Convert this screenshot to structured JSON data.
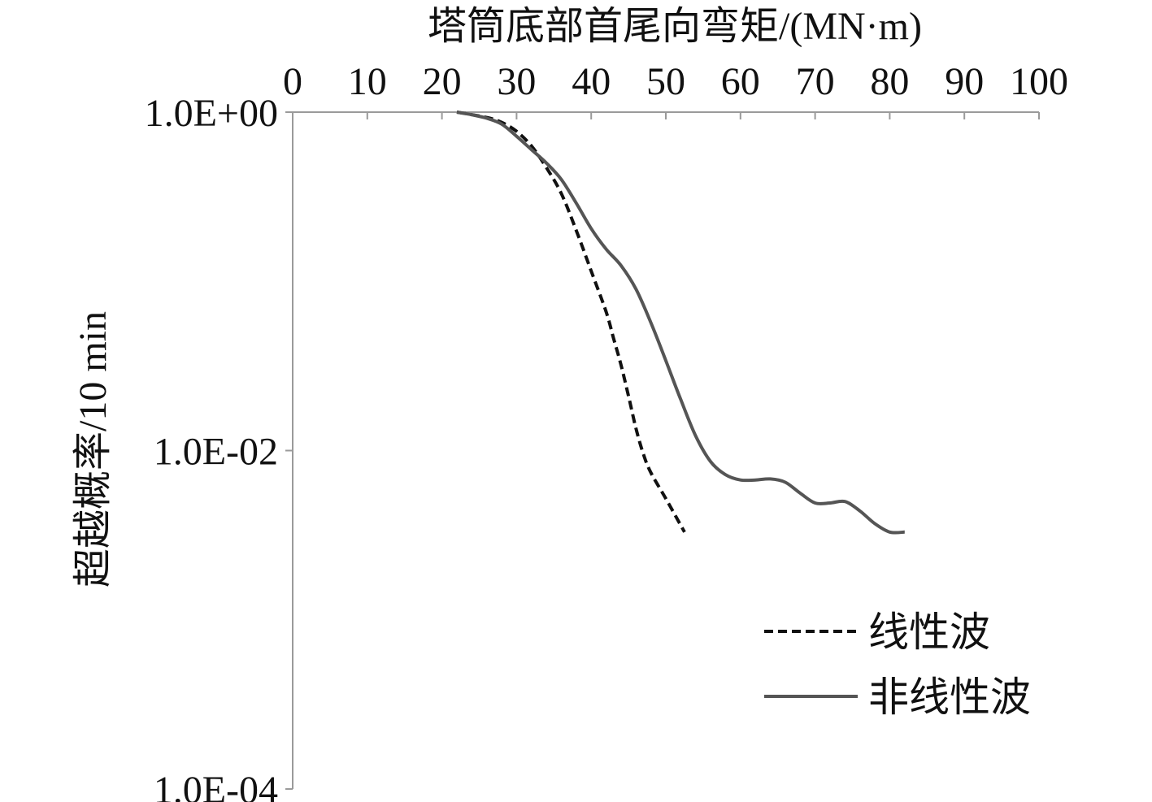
{
  "chart_data": {
    "type": "line",
    "title": "",
    "xlabel": "塔筒底部首尾向弯矩/(MN·m)",
    "ylabel": "超越概率/10 min",
    "x_axis_position": "top",
    "y_scale": "log",
    "xlim": [
      0,
      100
    ],
    "ylim": [
      0.0001,
      1
    ],
    "x_ticks": [
      0,
      10,
      20,
      30,
      40,
      50,
      60,
      70,
      80,
      90,
      100
    ],
    "x_tick_labels": [
      "0",
      "10",
      "20",
      "30",
      "40",
      "50",
      "60",
      "70",
      "80",
      "90",
      "100"
    ],
    "y_ticks": [
      1,
      0.01,
      0.0001
    ],
    "y_tick_labels": [
      "1.0E+00",
      "1.0E-02",
      "1.0E-04"
    ],
    "grid": false,
    "legend_position": "bottom-right",
    "series": [
      {
        "name": "线性波",
        "style": "dashed",
        "color": "#111111",
        "x": [
          22,
          26,
          28,
          30,
          32,
          34,
          36,
          38,
          40,
          42,
          43,
          44,
          45,
          46,
          47,
          48,
          50,
          52.5
        ],
        "y": [
          1.0,
          0.93,
          0.87,
          0.77,
          0.63,
          0.47,
          0.33,
          0.2,
          0.115,
          0.066,
          0.046,
          0.032,
          0.021,
          0.0135,
          0.0095,
          0.0074,
          0.0052,
          0.0033
        ]
      },
      {
        "name": "非线性波",
        "style": "solid",
        "color": "#555555",
        "x": [
          22,
          24,
          26,
          28,
          30,
          32,
          34,
          36,
          38,
          40,
          42,
          44,
          46,
          48,
          50,
          52,
          54,
          56,
          58,
          60,
          62,
          64,
          66,
          68,
          70,
          72,
          74,
          76,
          78,
          80,
          82
        ],
        "y": [
          1.0,
          0.965,
          0.92,
          0.85,
          0.72,
          0.6,
          0.5,
          0.4,
          0.29,
          0.205,
          0.155,
          0.124,
          0.09,
          0.057,
          0.034,
          0.02,
          0.0122,
          0.0086,
          0.0072,
          0.0067,
          0.0067,
          0.0068,
          0.0065,
          0.0056,
          0.0049,
          0.0049,
          0.005,
          0.0044,
          0.0037,
          0.0033,
          0.0033
        ]
      }
    ]
  }
}
